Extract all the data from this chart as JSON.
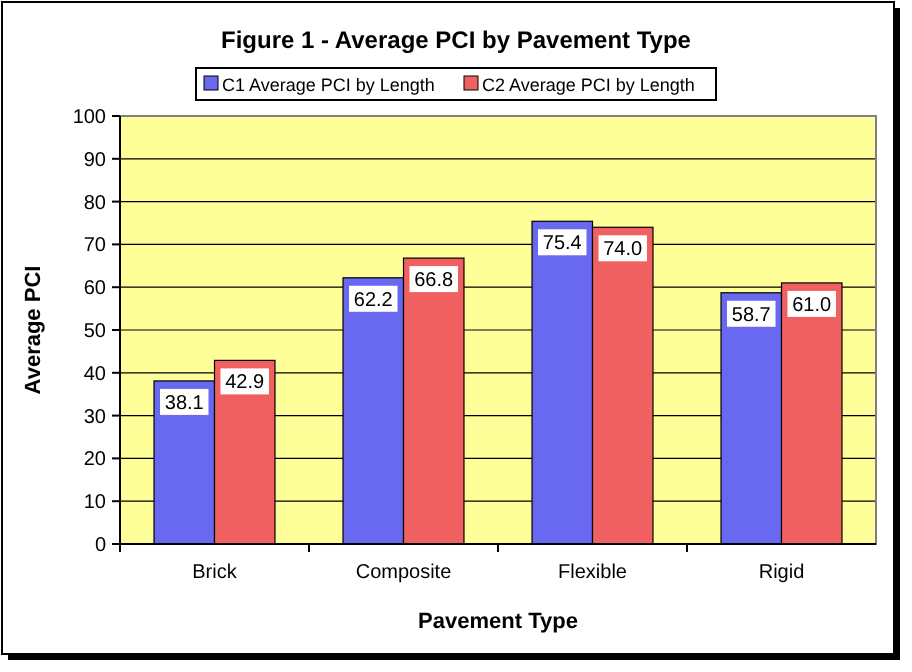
{
  "chart_data": {
    "type": "bar",
    "title": "Figure 1 - Average PCI by Pavement Type",
    "xlabel": "Pavement Type",
    "ylabel": "Average PCI",
    "categories": [
      "Brick",
      "Composite",
      "Flexible",
      "Rigid"
    ],
    "series": [
      {
        "name": "C1 Average PCI by Length",
        "color": "#6868f0",
        "values": [
          38.1,
          62.2,
          75.4,
          58.7
        ],
        "value_labels": [
          "38.1",
          "62.2",
          "75.4",
          "58.7"
        ]
      },
      {
        "name": "C2 Average PCI by Length",
        "color": "#f06060",
        "values": [
          42.9,
          66.8,
          74.0,
          61.0
        ],
        "value_labels": [
          "42.9",
          "66.8",
          "74.0",
          "61.0"
        ]
      }
    ],
    "ylim": [
      0,
      100
    ],
    "yticks": [
      0,
      10,
      20,
      30,
      40,
      50,
      60,
      70,
      80,
      90,
      100
    ],
    "grid": "y",
    "legend": "top"
  }
}
